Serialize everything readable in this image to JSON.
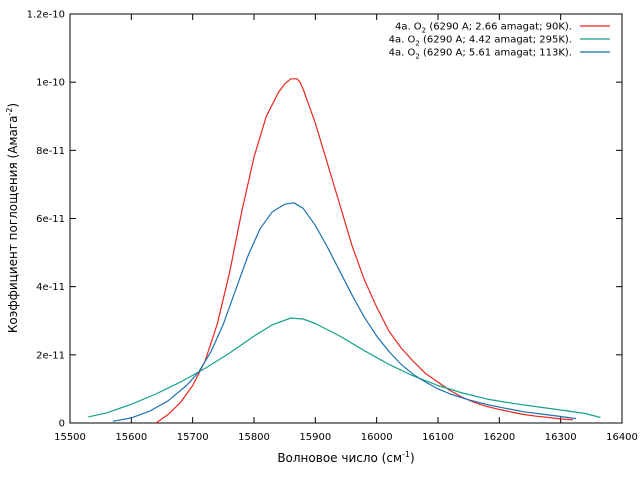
{
  "chart_data": {
    "type": "line",
    "title": "",
    "xlabel": {
      "base": "Волновое число (см",
      "sup": "-1",
      "end": ")"
    },
    "ylabel": {
      "base": "Коэффициент поглощения (Амага",
      "sup": "-2",
      "end": ")"
    },
    "xlim": [
      15500,
      16400
    ],
    "ylim": [
      0,
      1.2e-10
    ],
    "x_ticks": [
      15500,
      15600,
      15700,
      15800,
      15900,
      16000,
      16100,
      16200,
      16300,
      16400
    ],
    "x_tick_labels": [
      "15500",
      "15600",
      "15700",
      "15800",
      "15900",
      "16000",
      "16100",
      "16200",
      "16300",
      "16400"
    ],
    "y_ticks": [
      0,
      2e-11,
      4e-11,
      6e-11,
      8e-11,
      1e-10,
      1.2e-10
    ],
    "y_tick_labels": [
      "0",
      "2e-11",
      "4e-11",
      "6e-11",
      "8e-11",
      "1e-10",
      "1.2e-10"
    ],
    "grid": false,
    "legend_position": "top-right",
    "series": [
      {
        "name": {
          "pre": "4a. O",
          "sub": "2",
          "post": " (6290 A; 2.66 amagat; 90K)."
        },
        "color": "#e8281e",
        "x": [
          15640,
          15660,
          15680,
          15700,
          15720,
          15740,
          15760,
          15780,
          15800,
          15820,
          15840,
          15850,
          15860,
          15870,
          15875,
          15880,
          15890,
          15900,
          15920,
          15940,
          15960,
          15980,
          16000,
          16020,
          16040,
          16060,
          16080,
          16100,
          16120,
          16140,
          16160,
          16180,
          16200,
          16220,
          16240,
          16260,
          16280,
          16300,
          16320
        ],
        "y": [
          0.0,
          2.5e-12,
          6e-12,
          1.1e-11,
          1.8e-11,
          2.9e-11,
          4.4e-11,
          6.2e-11,
          7.8e-11,
          9e-11,
          9.7e-11,
          9.95e-11,
          1.01e-10,
          1.01e-10,
          1e-10,
          9.8e-11,
          9.3e-11,
          8.8e-11,
          7.6e-11,
          6.4e-11,
          5.2e-11,
          4.2e-11,
          3.4e-11,
          2.7e-11,
          2.2e-11,
          1.8e-11,
          1.45e-11,
          1.2e-11,
          9.5e-12,
          7.5e-12,
          6e-12,
          4.8e-12,
          4e-12,
          3.2e-12,
          2.5e-12,
          2e-12,
          1.6e-12,
          1.2e-12,
          9e-13
        ]
      },
      {
        "name": {
          "pre": "4a. O",
          "sub": "2",
          "post": " (6290 A; 4.42 amagat; 295K)."
        },
        "color": "#13a28a",
        "x": [
          15530,
          15560,
          15600,
          15640,
          15680,
          15720,
          15760,
          15800,
          15830,
          15860,
          15880,
          15900,
          15940,
          15980,
          16020,
          16060,
          16100,
          16140,
          16180,
          16220,
          16260,
          16300,
          16340,
          16365
        ],
        "y": [
          1.8e-12,
          3e-12,
          5.5e-12,
          8.5e-12,
          1.2e-11,
          1.6e-11,
          2.05e-11,
          2.55e-11,
          2.88e-11,
          3.08e-11,
          3.05e-11,
          2.92e-11,
          2.55e-11,
          2.12e-11,
          1.72e-11,
          1.38e-11,
          1.1e-11,
          8.8e-12,
          7e-12,
          5.8e-12,
          4.8e-12,
          3.8e-12,
          2.8e-12,
          1.6e-12
        ]
      },
      {
        "name": {
          "pre": "4a. O",
          "sub": "2",
          "post": " (6290 A; 5.61 amagat; 113K)."
        },
        "color": "#1b72b0",
        "x": [
          15570,
          15600,
          15630,
          15660,
          15690,
          15710,
          15730,
          15750,
          15770,
          15790,
          15810,
          15830,
          15850,
          15865,
          15880,
          15900,
          15920,
          15940,
          15960,
          15980,
          16000,
          16020,
          16040,
          16060,
          16080,
          16100,
          16120,
          16150,
          16180,
          16210,
          16240,
          16270,
          16300,
          16325
        ],
        "y": [
          5e-13,
          1.5e-12,
          3.5e-12,
          6.5e-12,
          1.1e-11,
          1.5e-11,
          2.1e-11,
          2.9e-11,
          3.9e-11,
          4.9e-11,
          5.7e-11,
          6.2e-11,
          6.42e-11,
          6.46e-11,
          6.3e-11,
          5.8e-11,
          5.15e-11,
          4.45e-11,
          3.75e-11,
          3.1e-11,
          2.55e-11,
          2.1e-11,
          1.72e-11,
          1.42e-11,
          1.2e-11,
          1e-11,
          8.5e-12,
          6.8e-12,
          5.4e-12,
          4.3e-12,
          3.3e-12,
          2.6e-12,
          1.9e-12,
          1.3e-12
        ]
      }
    ]
  }
}
